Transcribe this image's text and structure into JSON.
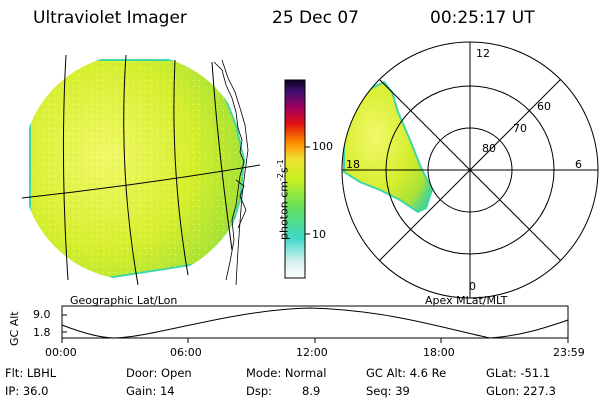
{
  "header": {
    "instrument": "Ultraviolet Imager",
    "date": "25 Dec 07",
    "time": "00:25:17 UT"
  },
  "colorbar": {
    "unit_label": "photon cm",
    "unit_exp1": "-2",
    "unit_mid": "s",
    "unit_exp2": "-1",
    "ticks": [
      {
        "label": "100",
        "value": 100
      },
      {
        "label": "10",
        "value": 10
      }
    ]
  },
  "left_panel": {
    "caption": "Geographic Lat/Lon"
  },
  "right_panel": {
    "caption": "Apex MLat/MLT",
    "mlt_labels": {
      "top": "12",
      "right": "6",
      "bottom": "0",
      "left": "18"
    },
    "lat_labels": [
      "60",
      "70",
      "80"
    ]
  },
  "altitude_plot": {
    "axis_label": "GC Alt",
    "y_ticks": [
      "9.0",
      "1.8"
    ],
    "x_ticks": [
      "00:00",
      "06:00",
      "12:00",
      "18:00",
      "23:59"
    ]
  },
  "footer": {
    "flt": "Flt: LBHL",
    "door": "Door: Open",
    "mode": "Mode: Normal",
    "gc_alt": "GC Alt: 4.6 Re",
    "glat": "GLat: -51.1",
    "ip": "IP: 36.0",
    "gain": "Gain: 14",
    "dsp_label": "Dsp:",
    "dsp_value": "8.9",
    "seq": "Seq: 39",
    "glon": "GLon: 227.3"
  },
  "colors": {
    "earth_fill": "#d4ee2a",
    "earth_bright": "#eef65a",
    "limb": "#3fd6a8"
  }
}
